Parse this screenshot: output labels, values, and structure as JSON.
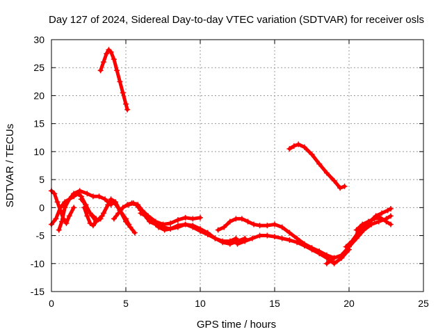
{
  "chart_data": {
    "type": "scatter",
    "title": "Day 127 of 2024, Sidereal Day-to-day VTEC variation (SDTVAR) for receiver osls",
    "xlabel": "GPS time / hours",
    "ylabel": "SDTVAR / TECUs",
    "xlim": [
      0,
      25
    ],
    "ylim": [
      -15,
      30
    ],
    "xticks": [
      0,
      5,
      10,
      15,
      20,
      25
    ],
    "yticks": [
      -15,
      -10,
      -5,
      0,
      5,
      10,
      15,
      20,
      25,
      30
    ],
    "grid": true,
    "marker": "+",
    "color": "#ff0000",
    "series": [
      {
        "name": "arc-high-1",
        "x": [
          3.3,
          3.5,
          3.7,
          3.85,
          4.0,
          4.2,
          4.4,
          4.6,
          4.8,
          5.0,
          5.1
        ],
        "y": [
          24.5,
          26,
          27.5,
          28.2,
          27.8,
          26.5,
          24.5,
          22.5,
          20.5,
          18.5,
          17.5
        ]
      },
      {
        "name": "arc-high-2",
        "x": [
          16.0,
          16.3,
          16.6,
          17.0,
          17.5,
          18.0,
          18.5,
          19.0,
          19.4,
          19.7
        ],
        "y": [
          10.5,
          11,
          11.3,
          10.8,
          9.5,
          7.8,
          6.2,
          4.8,
          3.5,
          3.8
        ]
      },
      {
        "name": "arc-a",
        "x": [
          0.0,
          0.2,
          0.4,
          0.6,
          0.8,
          1.0,
          1.2,
          1.5
        ],
        "y": [
          3.0,
          2.5,
          1.0,
          -0.5,
          -2.0,
          -2.8,
          -1.5,
          0.0
        ]
      },
      {
        "name": "arc-b",
        "x": [
          0.0,
          0.3,
          0.6,
          0.9,
          1.2,
          1.5,
          1.8,
          2.0,
          2.3,
          2.6,
          3.0
        ],
        "y": [
          -3.0,
          -2.0,
          0.0,
          1.0,
          1.5,
          2.0,
          2.5,
          2.0,
          0.5,
          -1.0,
          -2.0
        ]
      },
      {
        "name": "arc-c",
        "x": [
          0.5,
          0.7,
          0.9,
          1.2,
          1.5,
          1.9,
          2.4,
          2.8,
          3.2,
          3.6,
          4.0
        ],
        "y": [
          -4.0,
          -2.5,
          0.0,
          1.5,
          2.5,
          3.0,
          2.5,
          2.0,
          2.0,
          1.5,
          0.5
        ]
      },
      {
        "name": "arc-d",
        "x": [
          2.0,
          2.3,
          2.6,
          3.0,
          3.4,
          3.8,
          4.2,
          4.6,
          5.0,
          5.2
        ],
        "y": [
          1.5,
          0.5,
          -1.0,
          -2.5,
          -1.5,
          0.5,
          1.0,
          -0.5,
          -2.0,
          -3.0
        ]
      },
      {
        "name": "arc-e",
        "x": [
          2.2,
          2.4,
          2.6,
          2.8,
          3.0,
          3.3
        ],
        "y": [
          0.0,
          -1.5,
          -2.8,
          -3.2,
          -2.5,
          -2.0
        ]
      },
      {
        "name": "arc-f",
        "x": [
          3.5,
          3.8,
          4.0,
          4.3,
          4.6,
          5.0,
          5.3,
          5.6
        ],
        "y": [
          -1.0,
          0.5,
          1.5,
          1.0,
          -0.5,
          -2.5,
          -3.5,
          -4.5
        ]
      },
      {
        "name": "arc-g",
        "x": [
          4.2,
          4.5,
          4.8,
          5.1,
          5.4,
          5.7,
          6.0,
          6.3,
          6.6,
          7.0,
          7.5,
          8.0,
          8.5,
          9.0,
          9.5,
          10.0,
          10.5,
          11.0,
          11.5,
          12.0,
          12.5,
          13.0
        ],
        "y": [
          -2.0,
          -1.0,
          0.0,
          0.5,
          0.8,
          0.5,
          -0.5,
          -1.5,
          -2.5,
          -3.0,
          -3.5,
          -3.8,
          -3.5,
          -3.0,
          -3.2,
          -3.8,
          -4.5,
          -5.5,
          -6.2,
          -6.5,
          -6.0,
          -5.5
        ]
      },
      {
        "name": "arc-h",
        "x": [
          5.2,
          5.5,
          5.8,
          6.1,
          6.5,
          7.0,
          7.5,
          8.0,
          8.5,
          9.0,
          9.5,
          10.0
        ],
        "y": [
          0.5,
          0.8,
          0.5,
          -0.5,
          -1.5,
          -2.5,
          -3.0,
          -2.8,
          -2.2,
          -1.8,
          -2.0,
          -1.8
        ]
      },
      {
        "name": "arc-i",
        "x": [
          6.0,
          6.4,
          6.8,
          7.2,
          7.6,
          8.0,
          8.5,
          9.0,
          9.5,
          10.0,
          10.5,
          11.0,
          11.5,
          12.0,
          12.4
        ],
        "y": [
          -1.0,
          -1.5,
          -2.5,
          -3.5,
          -4.0,
          -3.8,
          -3.2,
          -3.0,
          -3.5,
          -4.2,
          -4.8,
          -5.5,
          -6.0,
          -6.0,
          -5.5
        ]
      },
      {
        "name": "arc-j",
        "x": [
          11.2,
          11.6,
          12.0,
          12.4,
          12.8,
          13.2,
          13.6,
          14.0,
          14.5,
          15.0,
          15.5,
          16.0,
          16.5,
          17.0,
          17.5,
          18.0,
          18.5,
          19.0
        ],
        "y": [
          -4.0,
          -3.5,
          -2.5,
          -2.0,
          -2.0,
          -2.5,
          -3.0,
          -3.2,
          -3.2,
          -3.0,
          -3.5,
          -4.5,
          -5.5,
          -6.5,
          -7.2,
          -7.8,
          -8.5,
          -9.0
        ]
      },
      {
        "name": "arc-k",
        "x": [
          12.5,
          13.0,
          13.5,
          14.0,
          14.5,
          15.0,
          15.5,
          16.0,
          16.5,
          17.0,
          17.5,
          18.0,
          18.5,
          19.0,
          19.5,
          20.0
        ],
        "y": [
          -6.5,
          -6.0,
          -5.5,
          -5.0,
          -5.0,
          -5.2,
          -5.5,
          -5.8,
          -6.2,
          -6.8,
          -7.5,
          -8.2,
          -9.0,
          -10.0,
          -9.0,
          -7.5
        ]
      },
      {
        "name": "arc-l",
        "x": [
          18.5,
          19.0,
          19.5,
          20.0,
          20.5,
          21.0,
          21.5,
          22.0,
          22.5,
          22.8
        ],
        "y": [
          -10.0,
          -9.0,
          -8.5,
          -7.0,
          -5.5,
          -4.0,
          -3.0,
          -2.5,
          -2.0,
          -1.5
        ]
      },
      {
        "name": "arc-m",
        "x": [
          19.8,
          20.2,
          20.6,
          21.0,
          21.4,
          21.8,
          22.2,
          22.6,
          22.8
        ],
        "y": [
          -7.0,
          -6.0,
          -4.5,
          -3.5,
          -2.5,
          -1.5,
          -1.0,
          -0.5,
          -0.2
        ]
      },
      {
        "name": "arc-n",
        "x": [
          20.5,
          20.9,
          21.3,
          21.7,
          22.1,
          22.5,
          22.8
        ],
        "y": [
          -4.0,
          -3.0,
          -2.5,
          -2.0,
          -1.8,
          -2.5,
          -3.0
        ]
      }
    ]
  }
}
